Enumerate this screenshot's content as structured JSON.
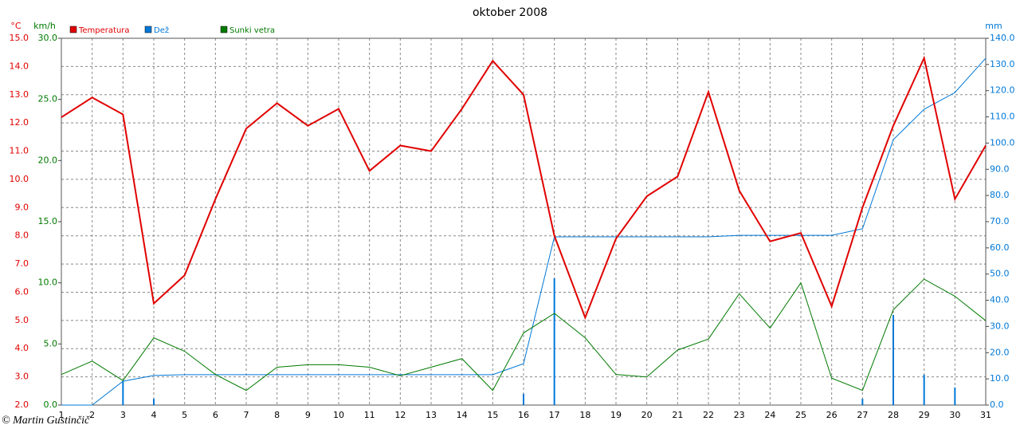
{
  "chart_data": {
    "type": "line",
    "title": "oktober 2008",
    "footer": "© Martin Gustinčič",
    "x": [
      1,
      2,
      3,
      4,
      5,
      6,
      7,
      8,
      9,
      10,
      11,
      12,
      13,
      14,
      15,
      16,
      17,
      18,
      19,
      20,
      21,
      22,
      23,
      24,
      25,
      26,
      27,
      28,
      29,
      30,
      31
    ],
    "xlim": [
      1,
      31
    ],
    "grid": true,
    "y_unit": "°C",
    "ylim": [
      2,
      15
    ],
    "yticks": [
      {
        "value": 2,
        "label": "2.0"
      },
      {
        "value": 3,
        "label": "3.0"
      },
      {
        "value": 4,
        "label": "4.0"
      },
      {
        "value": 5,
        "label": "5.0"
      },
      {
        "value": 6,
        "label": "6.0"
      },
      {
        "value": 7,
        "label": "7.0"
      },
      {
        "value": 8,
        "label": "8.0"
      },
      {
        "value": 9,
        "label": "9.0"
      },
      {
        "value": 10,
        "label": "10.0"
      },
      {
        "value": 11,
        "label": "11.0"
      },
      {
        "value": 12,
        "label": "12.0"
      },
      {
        "value": 13,
        "label": "13.0"
      },
      {
        "value": 14,
        "label": "14.0"
      },
      {
        "value": 15,
        "label": "15.0"
      }
    ],
    "y2_unit": "km/h",
    "y2lim": [
      0,
      30
    ],
    "y2ticks": [
      {
        "value": 0,
        "label": "0.0"
      },
      {
        "value": 5,
        "label": "5.0"
      },
      {
        "value": 10,
        "label": "10.0"
      },
      {
        "value": 15,
        "label": "15.0"
      },
      {
        "value": 20,
        "label": "20.0"
      },
      {
        "value": 25,
        "label": "25.0"
      },
      {
        "value": 30,
        "label": "30.0"
      }
    ],
    "y3_unit": "mm",
    "y3lim": [
      0,
      140
    ],
    "y3ticks": [
      {
        "value": 0,
        "label": "0.0"
      },
      {
        "value": 10,
        "label": "10.0"
      },
      {
        "value": 20,
        "label": "20.0"
      },
      {
        "value": 30,
        "label": "30.0"
      },
      {
        "value": 40,
        "label": "40.0"
      },
      {
        "value": 50,
        "label": "50.0"
      },
      {
        "value": 60,
        "label": "60.0"
      },
      {
        "value": 70,
        "label": "70.0"
      },
      {
        "value": 80,
        "label": "80.0"
      },
      {
        "value": 90,
        "label": "90.0"
      },
      {
        "value": 100,
        "label": "100.0"
      },
      {
        "value": 110,
        "label": "110.0"
      },
      {
        "value": 120,
        "label": "120.0"
      },
      {
        "value": 130,
        "label": "130.0"
      },
      {
        "value": 140,
        "label": "140.0"
      }
    ],
    "series": [
      {
        "name": "Temperatura",
        "color": "#e00000",
        "axis": "y",
        "values": [
          12.2,
          12.9,
          12.3,
          5.6,
          6.6,
          9.3,
          11.8,
          12.7,
          11.9,
          12.5,
          10.3,
          11.2,
          11.0,
          12.5,
          14.2,
          13.0,
          8.0,
          5.1,
          7.9,
          9.4,
          10.1,
          13.1,
          9.6,
          7.8,
          8.1,
          5.5,
          9.0,
          11.9,
          14.3,
          9.3,
          11.2
        ]
      },
      {
        "name": "Dež",
        "color": "#0078d7",
        "axis": "y3",
        "values": [
          0,
          0,
          9.1,
          2.4,
          0,
          0,
          0,
          0,
          0,
          0,
          0,
          0,
          0,
          0,
          0,
          4.3,
          48.4,
          0,
          0,
          0,
          0,
          0,
          0,
          0,
          0,
          0,
          2.4,
          34.4,
          11.6,
          6.7,
          0
        ],
        "cumulative": [
          0,
          0,
          9.1,
          11.3,
          11.6,
          11.6,
          11.6,
          11.6,
          11.6,
          11.6,
          11.6,
          11.6,
          11.6,
          11.6,
          11.6,
          15.8,
          64.2,
          64.2,
          64.2,
          64.2,
          64.2,
          64.2,
          64.8,
          64.8,
          64.8,
          64.8,
          67.3,
          101.3,
          112.9,
          119.3,
          132.4
        ]
      },
      {
        "name": "Sunki vetra",
        "color": "#007a00",
        "axis": "y2",
        "values": [
          2.5,
          3.6,
          2.0,
          5.5,
          4.4,
          2.5,
          1.2,
          3.1,
          3.3,
          3.3,
          3.1,
          2.4,
          3.1,
          3.8,
          1.2,
          5.9,
          7.5,
          5.5,
          2.5,
          2.3,
          4.5,
          5.4,
          9.1,
          6.3,
          10.0,
          2.2,
          1.2,
          7.8,
          10.3,
          8.9,
          6.9
        ]
      }
    ]
  }
}
